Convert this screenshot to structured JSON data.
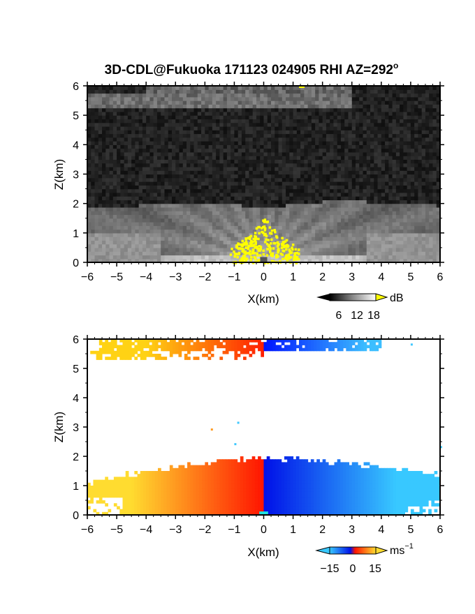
{
  "chart_data": [
    {
      "type": "heatmap",
      "title": "3D-CDL@Fukuoka 171123 024905 RHI AZ=292",
      "title_superscript": "o",
      "variable": "reflectivity",
      "xlabel": "X(km)",
      "ylabel": "Z(km)",
      "xlim": [
        -6,
        6
      ],
      "ylim": [
        0,
        6
      ],
      "x_ticks": [
        "-6",
        "-5",
        "-4",
        "-3",
        "-2",
        "-1",
        "0",
        "1",
        "2",
        "3",
        "4",
        "5",
        "6"
      ],
      "y_ticks": [
        "0",
        "1",
        "2",
        "3",
        "4",
        "5",
        "6"
      ],
      "colormap": "grayscale",
      "overlay_color": "#ffff00",
      "colorbar": {
        "unit": "dB",
        "ticks": [
          "6",
          "12",
          "18"
        ],
        "range": [
          0,
          21
        ]
      }
    },
    {
      "type": "heatmap",
      "variable": "doppler_velocity",
      "xlabel": "X(km)",
      "ylabel": "Z(km)",
      "xlim": [
        -6,
        6
      ],
      "ylim": [
        0,
        6
      ],
      "x_ticks": [
        "-6",
        "-5",
        "-4",
        "-3",
        "-2",
        "-1",
        "0",
        "1",
        "2",
        "3",
        "4",
        "5",
        "6"
      ],
      "y_ticks": [
        "0",
        "1",
        "2",
        "3",
        "4",
        "5",
        "6"
      ],
      "colormap": "cyan-blue-red-yellow",
      "colorbar": {
        "unit": "ms",
        "unit_superscript": "−1",
        "ticks": [
          "−15",
          "0",
          "15"
        ],
        "range": [
          -20,
          20
        ]
      }
    }
  ],
  "colors": {
    "background": "#ffffff",
    "frame": "#000000",
    "refl_dark": "#1a1a1a",
    "refl_bright": "#eeeeee",
    "overlay": "#ffff00",
    "vel_neg_far": "#38c8ff",
    "vel_neg_near": "#0010e8",
    "vel_pos_near": "#ff1400",
    "vel_pos_far": "#ffdc30",
    "ground_clutter": "#20e0e0"
  }
}
